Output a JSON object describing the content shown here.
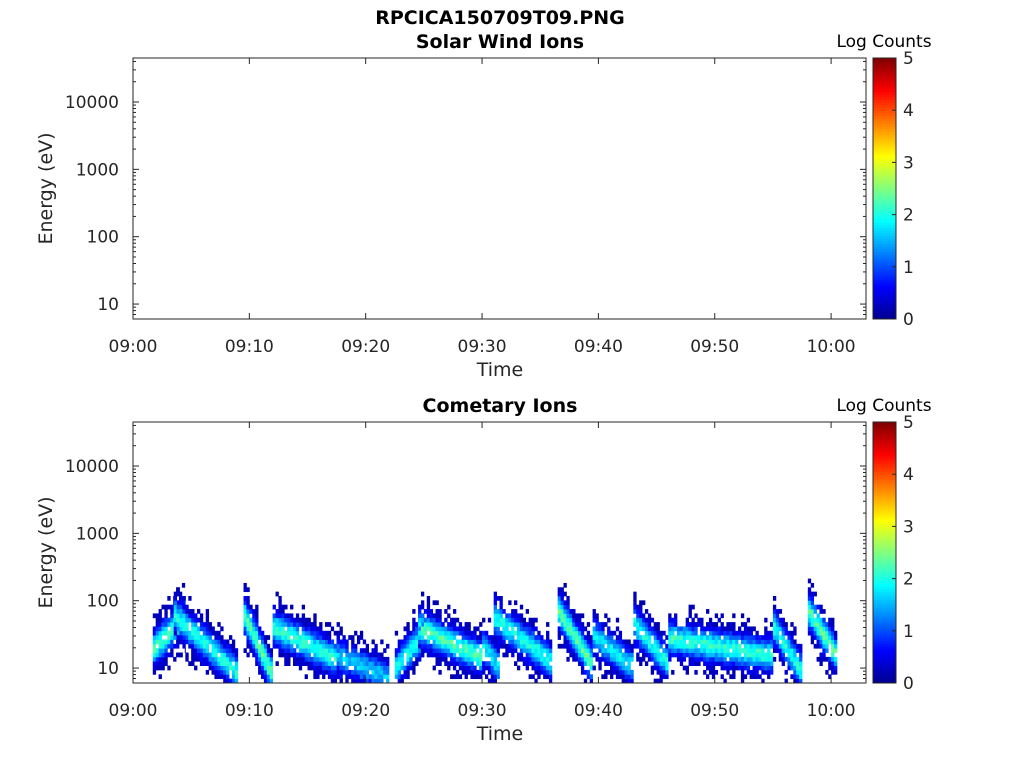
{
  "figure_title": "RPCICA150709T09.PNG",
  "colormap": {
    "name": "jet",
    "stops": [
      "#00008f",
      "#0000ff",
      "#0080ff",
      "#00ffff",
      "#80ff80",
      "#ffff00",
      "#ff8000",
      "#ff0000",
      "#800000"
    ]
  },
  "chart_data": [
    {
      "type": "heatmap",
      "title": "Solar Wind Ions",
      "xlabel": "Time",
      "ylabel": "Energy (eV)",
      "x_ticks": [
        "09:00",
        "09:10",
        "09:20",
        "09:30",
        "09:40",
        "09:50",
        "10:00"
      ],
      "x_range_minutes": [
        0,
        63
      ],
      "y_scale": "log",
      "y_range": [
        6,
        45000
      ],
      "y_ticks": [
        "10",
        "100",
        "1000",
        "10000"
      ],
      "colorbar": {
        "label": "Log Counts",
        "range": [
          0,
          5
        ],
        "ticks": [
          "0",
          "1",
          "2",
          "3",
          "4",
          "5"
        ]
      },
      "bands": []
    },
    {
      "type": "heatmap",
      "title": "Cometary Ions",
      "xlabel": "Time",
      "ylabel": "Energy (eV)",
      "x_ticks": [
        "09:00",
        "09:10",
        "09:20",
        "09:30",
        "09:40",
        "09:50",
        "10:00"
      ],
      "x_range_minutes": [
        0,
        63
      ],
      "y_scale": "log",
      "y_range": [
        6,
        45000
      ],
      "y_ticks": [
        "10",
        "100",
        "1000",
        "10000"
      ],
      "colorbar": {
        "label": "Log Counts",
        "range": [
          0,
          5
        ],
        "ticks": [
          "0",
          "1",
          "2",
          "3",
          "4",
          "5"
        ]
      },
      "bands": [
        {
          "t0": 1.7,
          "t1": 4.5,
          "e_start": 20,
          "e_end": 60,
          "peak": 2.3
        },
        {
          "t0": 3.5,
          "t1": 9.0,
          "e_start": 60,
          "e_end": 8,
          "peak": 2.0
        },
        {
          "t0": 9.5,
          "t1": 12.0,
          "e_start": 60,
          "e_end": 7,
          "peak": 2.3
        },
        {
          "t0": 12.0,
          "t1": 18.0,
          "e_start": 40,
          "e_end": 12,
          "peak": 2.1
        },
        {
          "t0": 17.5,
          "t1": 22.0,
          "e_start": 15,
          "e_end": 7,
          "peak": 1.6
        },
        {
          "t0": 22.5,
          "t1": 25.0,
          "e_start": 10,
          "e_end": 35,
          "peak": 2.0
        },
        {
          "t0": 24.5,
          "t1": 30.0,
          "e_start": 40,
          "e_end": 14,
          "peak": 2.2
        },
        {
          "t0": 30.0,
          "t1": 31.5,
          "e_start": 20,
          "e_end": 10,
          "peak": 1.8
        },
        {
          "t0": 31.0,
          "t1": 36.0,
          "e_start": 55,
          "e_end": 12,
          "peak": 2.0
        },
        {
          "t0": 36.5,
          "t1": 39.5,
          "e_start": 70,
          "e_end": 10,
          "peak": 2.3
        },
        {
          "t0": 39.5,
          "t1": 43.0,
          "e_start": 30,
          "e_end": 10,
          "peak": 1.8
        },
        {
          "t0": 43.0,
          "t1": 46.0,
          "e_start": 45,
          "e_end": 11,
          "peak": 2.0
        },
        {
          "t0": 46.0,
          "t1": 55.0,
          "e_start": 28,
          "e_end": 15,
          "peak": 2.1
        },
        {
          "t0": 55.0,
          "t1": 57.5,
          "e_start": 40,
          "e_end": 8,
          "peak": 2.0
        },
        {
          "t0": 58.0,
          "t1": 60.5,
          "e_start": 70,
          "e_end": 14,
          "peak": 2.3
        }
      ]
    }
  ]
}
